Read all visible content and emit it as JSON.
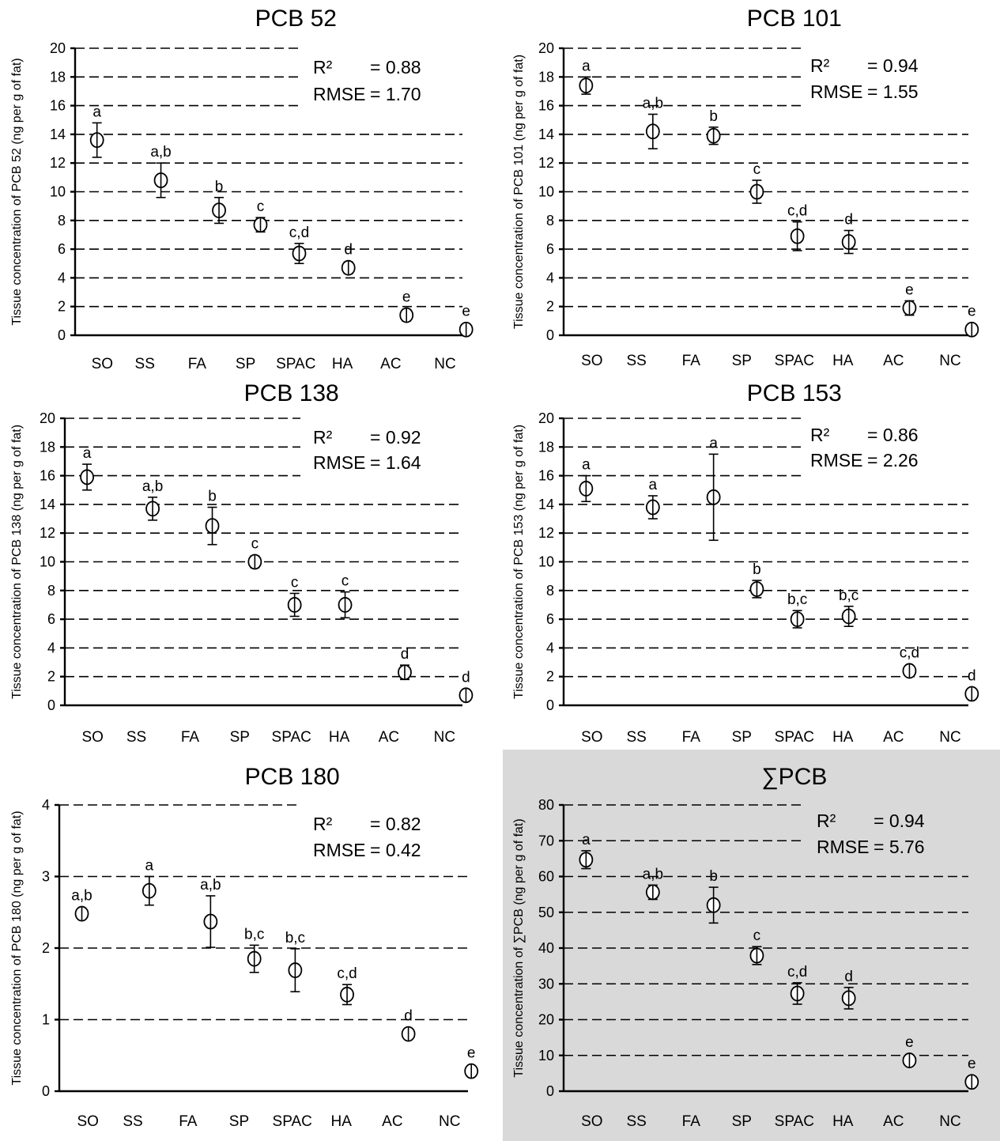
{
  "chart_data": [
    {
      "type": "scatter",
      "title": "PCB 52",
      "ylabel": "Tissue concentration of PCB 52 (ng per g of fat)",
      "ylim": [
        0,
        20
      ],
      "yticks": [
        0,
        2,
        4,
        6,
        8,
        10,
        12,
        14,
        16,
        18,
        20
      ],
      "categories": [
        "SO",
        "SS",
        "FA",
        "SP",
        "SPAC",
        "HA",
        "AC",
        "NC"
      ],
      "values": [
        13.6,
        10.8,
        8.7,
        7.7,
        5.7,
        4.7,
        1.4,
        0.4
      ],
      "error": [
        1.2,
        1.2,
        0.9,
        0.5,
        0.7,
        0.4,
        0.4,
        0.2
      ],
      "letters": [
        "a",
        "a,b",
        "b",
        "c",
        "c,d",
        "d",
        "e",
        "e"
      ],
      "stats": {
        "r2_label": "R²",
        "r2_value": "= 0.88",
        "rmse_label": "RMSE",
        "rmse_value": "= 1.70"
      },
      "shaded": false,
      "grid": true,
      "stats_position": "top-right"
    },
    {
      "type": "scatter",
      "title": "PCB 101",
      "ylabel": "Tissue concentration of PCB 101 (ng per g of fat)",
      "ylim": [
        0,
        20
      ],
      "yticks": [
        0,
        2,
        4,
        6,
        8,
        10,
        12,
        14,
        16,
        18,
        20
      ],
      "categories": [
        "SO",
        "SS",
        "FA",
        "SP",
        "SPAC",
        "HA",
        "AC",
        "NC"
      ],
      "values": [
        17.4,
        14.2,
        13.9,
        10.0,
        6.9,
        6.5,
        1.9,
        0.4
      ],
      "error": [
        0.6,
        1.2,
        0.6,
        0.8,
        1.0,
        0.8,
        0.5,
        0.2
      ],
      "letters": [
        "a",
        "a,b",
        "b",
        "c",
        "c,d",
        "d",
        "e",
        "e"
      ],
      "stats": {
        "r2_label": "R²",
        "r2_value": "= 0.94",
        "rmse_label": "RMSE",
        "rmse_value": "= 1.55"
      },
      "shaded": false,
      "grid": true,
      "stats_position": "top-right"
    },
    {
      "type": "scatter",
      "title": "PCB 138",
      "ylabel": "Tissue concentration of PCB 138 (ng per g of fat)",
      "ylim": [
        0,
        20
      ],
      "yticks": [
        0,
        2,
        4,
        6,
        8,
        10,
        12,
        14,
        16,
        18,
        20
      ],
      "categories": [
        "SO",
        "SS",
        "FA",
        "SP",
        "SPAC",
        "HA",
        "AC",
        "NC"
      ],
      "values": [
        15.9,
        13.7,
        12.5,
        10.0,
        7.0,
        7.0,
        2.3,
        0.7
      ],
      "error": [
        0.9,
        0.8,
        1.3,
        0.4,
        0.8,
        0.9,
        0.5,
        0.2
      ],
      "letters": [
        "a",
        "a,b",
        "b",
        "c",
        "c",
        "c",
        "d",
        "d"
      ],
      "stats": {
        "r2_label": "R²",
        "r2_value": "= 0.92",
        "rmse_label": "RMSE",
        "rmse_value": "= 1.64"
      },
      "shaded": false,
      "grid": true,
      "stats_position": "top-right"
    },
    {
      "type": "scatter",
      "title": "PCB 153",
      "ylabel": "Tissue concentration of PCB 153 (ng per g of fat)",
      "ylim": [
        0,
        20
      ],
      "yticks": [
        0,
        2,
        4,
        6,
        8,
        10,
        12,
        14,
        16,
        18,
        20
      ],
      "categories": [
        "SO",
        "SS",
        "FA",
        "SP",
        "SPAC",
        "HA",
        "AC",
        "NC"
      ],
      "values": [
        15.1,
        13.8,
        14.5,
        8.1,
        6.0,
        6.2,
        2.4,
        0.8
      ],
      "error": [
        0.9,
        0.8,
        3.0,
        0.6,
        0.6,
        0.7,
        0.3,
        0.2
      ],
      "letters": [
        "a",
        "a",
        "a",
        "b",
        "b,c",
        "b,c",
        "c,d",
        "d"
      ],
      "stats": {
        "r2_label": "R²",
        "r2_value": "= 0.86",
        "rmse_label": "RMSE",
        "rmse_value": "= 2.26"
      },
      "shaded": false,
      "grid": true,
      "stats_position": "top-right"
    },
    {
      "type": "scatter",
      "title": "PCB 180",
      "ylabel": "Tissue concentration of PCB 180 (ng per g of fat)",
      "ylim": [
        0,
        4
      ],
      "yticks": [
        0,
        1,
        2,
        3,
        4
      ],
      "categories": [
        "SO",
        "SS",
        "FA",
        "SP",
        "SPAC",
        "HA",
        "AC",
        "NC"
      ],
      "values": [
        2.48,
        2.8,
        2.37,
        1.85,
        1.69,
        1.35,
        0.8,
        0.28
      ],
      "error": [
        0.05,
        0.2,
        0.36,
        0.19,
        0.3,
        0.14,
        0.05,
        0.05
      ],
      "letters": [
        "a,b",
        "a",
        "a,b",
        "b,c",
        "b,c",
        "c,d",
        "d",
        "e"
      ],
      "stats": {
        "r2_label": "R²",
        "r2_value": "= 0.82",
        "rmse_label": "RMSE",
        "rmse_value": "= 0.42"
      },
      "shaded": false,
      "grid": true,
      "stats_position": "top-right"
    },
    {
      "type": "scatter",
      "title": "∑PCB",
      "ylabel": "Tissue concentration of ∑PCB (ng per g of fat)",
      "ylim": [
        0,
        80
      ],
      "yticks": [
        0,
        10,
        20,
        30,
        40,
        50,
        60,
        70,
        80
      ],
      "categories": [
        "SO",
        "SS",
        "FA",
        "SP",
        "SPAC",
        "HA",
        "AC",
        "NC"
      ],
      "values": [
        64.7,
        55.6,
        52.0,
        37.9,
        27.3,
        26.0,
        8.6,
        2.6
      ],
      "error": [
        2.5,
        2.0,
        5.0,
        2.5,
        3.0,
        3.0,
        1.2,
        0.5
      ],
      "letters": [
        "a",
        "a,b",
        "b",
        "c",
        "c,d",
        "d",
        "e",
        "e"
      ],
      "stats": {
        "r2_label": "R²",
        "r2_value": "= 0.94",
        "rmse_label": "RMSE",
        "rmse_value": "= 5.76"
      },
      "shaded": true,
      "shade_color": "#d9d9d9",
      "grid": true,
      "stats_position": "top-right"
    }
  ]
}
